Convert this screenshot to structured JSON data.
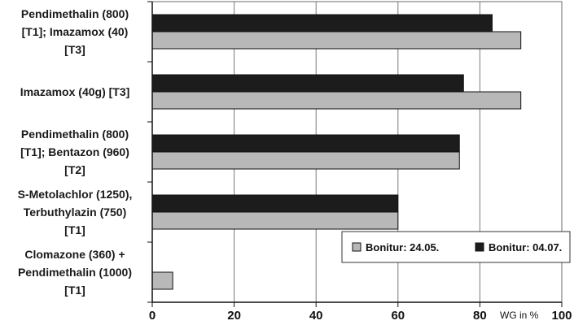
{
  "chart_data": {
    "type": "bar",
    "orientation": "horizontal",
    "categories": [
      [
        "Pendimethalin (800)",
        "[T1]; Imazamox (40)",
        "[T3]"
      ],
      [
        "Imazamox (40g) [T3]"
      ],
      [
        "Pendimethalin (800)",
        "[T1]; Bentazon (960)",
        "[T2]"
      ],
      [
        "S-Metolachlor (1250),",
        "Terbuthylazin (750)",
        "[T1]"
      ],
      [
        "Clomazone (360) +",
        "Pendimethalin (1000)",
        "[T1]"
      ]
    ],
    "series": [
      {
        "name": "Bonitur: 04.07.",
        "color": "#1c1c1c",
        "values": [
          83,
          76,
          75,
          60,
          null
        ]
      },
      {
        "name": "Bonitur: 24.05.",
        "color": "#b8b8b8",
        "values": [
          90,
          90,
          75,
          60,
          5
        ]
      }
    ],
    "xlabel": "WG in %",
    "xlim": [
      0,
      100
    ],
    "xticks": [
      "0",
      "20",
      "40",
      "60",
      "80",
      "100"
    ],
    "grid": true,
    "legend": {
      "placement": "bottom-right",
      "entries": [
        {
          "label": "Bonitur: 24.05.",
          "color": "#b8b8b8"
        },
        {
          "label": "Bonitur: 04.07.",
          "color": "#1c1c1c"
        }
      ]
    }
  }
}
